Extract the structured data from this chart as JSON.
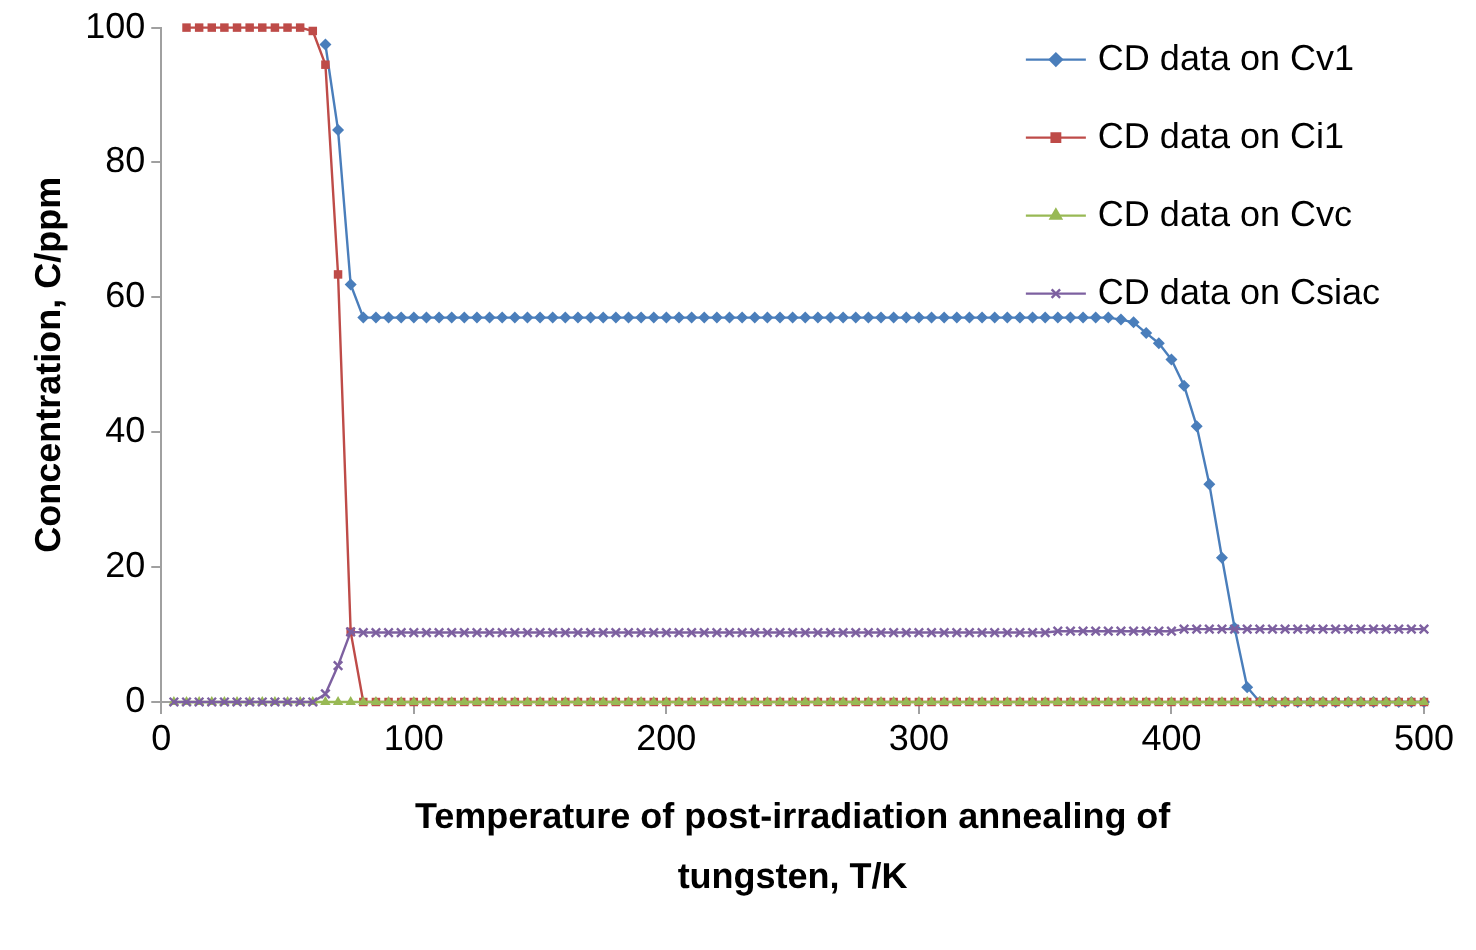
{
  "chart_data": {
    "type": "line",
    "xlabel": "Temperature of post-irradiation annealing of tungsten, T/K",
    "ylabel": "Concentration, C/ppm",
    "series": [
      {
        "name": "CD data on Cv1",
        "color": "#4a7ebb",
        "marker": "diamond",
        "x": [
          65,
          70,
          75,
          80,
          85,
          90,
          95,
          100,
          105,
          110,
          115,
          120,
          125,
          130,
          135,
          140,
          145,
          150,
          155,
          160,
          165,
          170,
          175,
          180,
          185,
          190,
          195,
          200,
          205,
          210,
          215,
          220,
          225,
          230,
          235,
          240,
          245,
          250,
          255,
          260,
          265,
          270,
          275,
          280,
          285,
          290,
          295,
          300,
          305,
          310,
          315,
          320,
          325,
          330,
          335,
          340,
          345,
          350,
          355,
          360,
          365,
          370,
          375,
          380,
          385,
          390,
          395,
          400,
          405,
          410,
          415,
          420,
          425,
          430,
          435,
          440,
          445,
          450,
          455,
          460,
          465,
          470,
          475,
          480,
          485,
          490,
          495,
          500
        ],
        "values": [
          97.5,
          84.8,
          61.9,
          57,
          57,
          57,
          57,
          57,
          57,
          57,
          57,
          57,
          57,
          57,
          57,
          57,
          57,
          57,
          57,
          57,
          57,
          57,
          57,
          57,
          57,
          57,
          57,
          57,
          57,
          57,
          57,
          57,
          57,
          57,
          57,
          57,
          57,
          57,
          57,
          57,
          57,
          57,
          57,
          57,
          57,
          57,
          57,
          57,
          57,
          57,
          57,
          57,
          57,
          57,
          57,
          57,
          57,
          57,
          57,
          57,
          57,
          57,
          57,
          56.7,
          56.3,
          54.7,
          53.2,
          50.8,
          46.9,
          40.9,
          32.3,
          21.4,
          11,
          2.2,
          0,
          0,
          0,
          0,
          0,
          0,
          0,
          0,
          0,
          0,
          0,
          0,
          0,
          0
        ]
      },
      {
        "name": "CD data on Ci1",
        "color": "#be4b48",
        "marker": "square",
        "x": [
          10,
          15,
          20,
          25,
          30,
          35,
          40,
          45,
          50,
          55,
          60,
          65,
          70,
          75,
          80,
          85,
          90,
          95,
          100,
          105,
          110,
          115,
          120,
          125,
          130,
          135,
          140,
          145,
          150,
          155,
          160,
          165,
          170,
          175,
          180,
          185,
          190,
          195,
          200,
          205,
          210,
          215,
          220,
          225,
          230,
          235,
          240,
          245,
          250,
          255,
          260,
          265,
          270,
          275,
          280,
          285,
          290,
          295,
          300,
          305,
          310,
          315,
          320,
          325,
          330,
          335,
          340,
          345,
          350,
          355,
          360,
          365,
          370,
          375,
          380,
          385,
          390,
          395,
          400,
          405,
          410,
          415,
          420,
          425,
          430,
          435,
          440,
          445,
          450,
          455,
          460,
          465,
          470,
          475,
          480,
          485,
          490,
          495,
          500
        ],
        "values": [
          100,
          100,
          100,
          100,
          100,
          100,
          100,
          100,
          100,
          100,
          99.5,
          94.5,
          63.4,
          10.4,
          0,
          0,
          0,
          0,
          0,
          0,
          0,
          0,
          0,
          0,
          0,
          0,
          0,
          0,
          0,
          0,
          0,
          0,
          0,
          0,
          0,
          0,
          0,
          0,
          0,
          0,
          0,
          0,
          0,
          0,
          0,
          0,
          0,
          0,
          0,
          0,
          0,
          0,
          0,
          0,
          0,
          0,
          0,
          0,
          0,
          0,
          0,
          0,
          0,
          0,
          0,
          0,
          0,
          0,
          0,
          0,
          0,
          0,
          0,
          0,
          0,
          0,
          0,
          0,
          0,
          0,
          0,
          0,
          0,
          0,
          0,
          0,
          0,
          0,
          0,
          0,
          0,
          0,
          0,
          0,
          0,
          0,
          0,
          0,
          0
        ]
      },
      {
        "name": "CD data on Cvc",
        "color": "#98b954",
        "marker": "triangle",
        "x": [
          5,
          10,
          15,
          20,
          25,
          30,
          35,
          40,
          45,
          50,
          55,
          60,
          65,
          70,
          75,
          80,
          85,
          90,
          95,
          100,
          105,
          110,
          115,
          120,
          125,
          130,
          135,
          140,
          145,
          150,
          155,
          160,
          165,
          170,
          175,
          180,
          185,
          190,
          195,
          200,
          205,
          210,
          215,
          220,
          225,
          230,
          235,
          240,
          245,
          250,
          255,
          260,
          265,
          270,
          275,
          280,
          285,
          290,
          295,
          300,
          305,
          310,
          315,
          320,
          325,
          330,
          335,
          340,
          345,
          350,
          355,
          360,
          365,
          370,
          375,
          380,
          385,
          390,
          395,
          400,
          405,
          410,
          415,
          420,
          425,
          430,
          435,
          440,
          445,
          450,
          455,
          460,
          465,
          470,
          475,
          480,
          485,
          490,
          495,
          500
        ],
        "values": [
          0,
          0,
          0,
          0,
          0,
          0,
          0,
          0,
          0,
          0,
          0,
          0,
          0,
          0,
          0,
          0,
          0,
          0,
          0,
          0,
          0,
          0,
          0,
          0,
          0,
          0,
          0,
          0,
          0,
          0,
          0,
          0,
          0,
          0,
          0,
          0,
          0,
          0,
          0,
          0,
          0,
          0,
          0,
          0,
          0,
          0,
          0,
          0,
          0,
          0,
          0,
          0,
          0,
          0,
          0,
          0,
          0,
          0,
          0,
          0,
          0,
          0,
          0,
          0,
          0,
          0,
          0,
          0,
          0,
          0,
          0,
          0,
          0,
          0,
          0,
          0,
          0,
          0,
          0,
          0,
          0,
          0,
          0,
          0,
          0,
          0,
          0,
          0,
          0,
          0,
          0,
          0,
          0,
          0,
          0,
          0,
          0,
          0,
          0,
          0
        ]
      },
      {
        "name": "CD data on Csiac",
        "color": "#7d60a0",
        "marker": "cross",
        "x": [
          5,
          10,
          15,
          20,
          25,
          30,
          35,
          40,
          45,
          50,
          55,
          60,
          65,
          70,
          75,
          80,
          85,
          90,
          95,
          100,
          105,
          110,
          115,
          120,
          125,
          130,
          135,
          140,
          145,
          150,
          155,
          160,
          165,
          170,
          175,
          180,
          185,
          190,
          195,
          200,
          205,
          210,
          215,
          220,
          225,
          230,
          235,
          240,
          245,
          250,
          255,
          260,
          265,
          270,
          275,
          280,
          285,
          290,
          295,
          300,
          305,
          310,
          315,
          320,
          325,
          330,
          335,
          340,
          345,
          350,
          355,
          360,
          365,
          370,
          375,
          380,
          385,
          390,
          395,
          400,
          405,
          410,
          415,
          420,
          425,
          430,
          435,
          440,
          445,
          450,
          455,
          460,
          465,
          470,
          475,
          480,
          485,
          490,
          495,
          500
        ],
        "values": [
          0,
          0,
          0,
          0,
          0,
          0,
          0,
          0,
          0,
          0,
          0,
          0,
          1.2,
          5.4,
          10.4,
          10.3,
          10.3,
          10.3,
          10.3,
          10.3,
          10.3,
          10.3,
          10.3,
          10.3,
          10.3,
          10.3,
          10.3,
          10.3,
          10.3,
          10.3,
          10.3,
          10.3,
          10.3,
          10.3,
          10.3,
          10.3,
          10.3,
          10.3,
          10.3,
          10.3,
          10.3,
          10.3,
          10.3,
          10.3,
          10.3,
          10.3,
          10.3,
          10.3,
          10.3,
          10.3,
          10.3,
          10.3,
          10.3,
          10.3,
          10.3,
          10.3,
          10.3,
          10.3,
          10.3,
          10.3,
          10.3,
          10.3,
          10.3,
          10.3,
          10.3,
          10.3,
          10.3,
          10.3,
          10.3,
          10.3,
          10.5,
          10.5,
          10.5,
          10.5,
          10.5,
          10.5,
          10.5,
          10.5,
          10.5,
          10.5,
          10.8,
          10.8,
          10.8,
          10.8,
          10.8,
          10.8,
          10.8,
          10.8,
          10.8,
          10.8,
          10.8,
          10.8,
          10.8,
          10.8,
          10.8,
          10.8,
          10.8,
          10.8,
          10.8,
          10.8
        ]
      }
    ],
    "xlim": [
      0,
      500
    ],
    "xticks": [
      0,
      100,
      200,
      300,
      400,
      500
    ],
    "ylim": [
      0,
      100
    ],
    "yticks": [
      0,
      20,
      40,
      60,
      80,
      100
    ],
    "grid": false,
    "legend": "top right",
    "line_style": "solid"
  }
}
